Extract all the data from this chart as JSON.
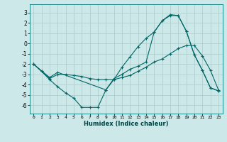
{
  "title": "",
  "xlabel": "Humidex (Indice chaleur)",
  "background_color": "#cce8e8",
  "grid_color": "#aacccc",
  "line_color": "#006666",
  "xlim": [
    -0.5,
    23.5
  ],
  "ylim": [
    -6.8,
    3.8
  ],
  "yticks": [
    -6,
    -5,
    -4,
    -3,
    -2,
    -1,
    0,
    1,
    2,
    3
  ],
  "xticks": [
    0,
    1,
    2,
    3,
    4,
    5,
    6,
    7,
    8,
    9,
    10,
    11,
    12,
    13,
    14,
    15,
    16,
    17,
    18,
    19,
    20,
    21,
    22,
    23
  ],
  "series": [
    {
      "x": [
        0,
        1,
        2,
        3,
        4,
        5,
        6,
        7,
        8,
        9,
        10,
        11,
        12,
        13,
        14,
        15,
        16,
        17,
        18,
        19,
        20,
        21,
        22,
        23
      ],
      "y": [
        -2.0,
        -2.7,
        -3.5,
        -4.2,
        -4.8,
        -5.3,
        -6.2,
        -6.2,
        -6.2,
        -4.5,
        -3.5,
        -2.3,
        -1.3,
        -0.3,
        0.5,
        1.1,
        2.2,
        2.8,
        2.7,
        1.2,
        -1.1,
        -2.6,
        -4.3,
        -4.6
      ]
    },
    {
      "x": [
        0,
        1,
        2,
        3,
        4,
        5,
        6,
        7,
        8,
        9,
        10,
        11,
        12,
        13,
        14,
        15,
        16,
        17,
        18,
        19,
        20,
        21,
        22,
        23
      ],
      "y": [
        -2.0,
        -2.7,
        -3.4,
        -3.0,
        -3.0,
        -3.1,
        -3.2,
        -3.4,
        -3.5,
        -3.5,
        -3.5,
        -3.3,
        -3.1,
        -2.7,
        -2.3,
        -1.8,
        -1.5,
        -1.0,
        -0.5,
        -0.2,
        -0.2,
        -1.2,
        -2.6,
        -4.5
      ]
    },
    {
      "x": [
        0,
        2,
        3,
        9,
        10,
        11,
        12,
        13,
        14,
        15,
        16,
        17,
        18,
        19,
        20,
        21,
        22,
        23
      ],
      "y": [
        -2.0,
        -3.3,
        -2.8,
        -4.5,
        -3.4,
        -3.0,
        -2.5,
        -2.2,
        -1.8,
        1.1,
        2.2,
        2.7,
        2.7,
        1.2,
        -1.1,
        -2.6,
        -4.3,
        -4.6
      ]
    }
  ]
}
